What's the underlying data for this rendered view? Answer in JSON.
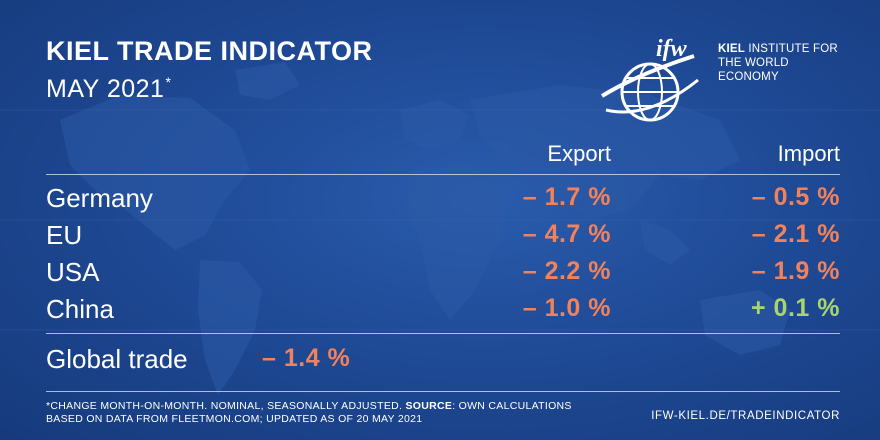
{
  "header": {
    "title": "KIEL TRADE INDICATOR",
    "subtitle": "MAY 2021",
    "subtitle_mark": "*"
  },
  "logo": {
    "mark_text": "ifw",
    "name_bold": "KIEL",
    "name_rest": "INSTITUTE FOR",
    "name_line2": "THE WORLD ECONOMY"
  },
  "table": {
    "export_header": "Export",
    "import_header": "Import",
    "rows": [
      {
        "label": "Germany",
        "export": "– 1.7 %",
        "import": "– 0.5 %"
      },
      {
        "label": "EU",
        "export": "– 4.7 %",
        "import": "– 2.1 %"
      },
      {
        "label": "USA",
        "export": "– 2.2 %",
        "import": "– 1.9 %"
      },
      {
        "label": "China",
        "export": "– 1.0 %",
        "import": "+ 0.1 %"
      }
    ],
    "global_label": "Global trade",
    "global_value": "– 1.4 %"
  },
  "footer": {
    "note_part1": "*CHANGE MONTH-ON-MONTH. NOMINAL, SEASONALLY ADJUSTED. ",
    "note_source_label": "SOURCE",
    "note_part2": ": OWN CALCULATIONS BASED ON DATA FROM FLEETMON.COM; UPDATED AS OF 20 MAY 2021",
    "url": "IFW-KIEL.DE/TRADEINDICATOR"
  },
  "colors": {
    "background": "#1f4a96",
    "negative": "#f2825a",
    "positive": "#a8d66b",
    "text": "#ffffff"
  }
}
